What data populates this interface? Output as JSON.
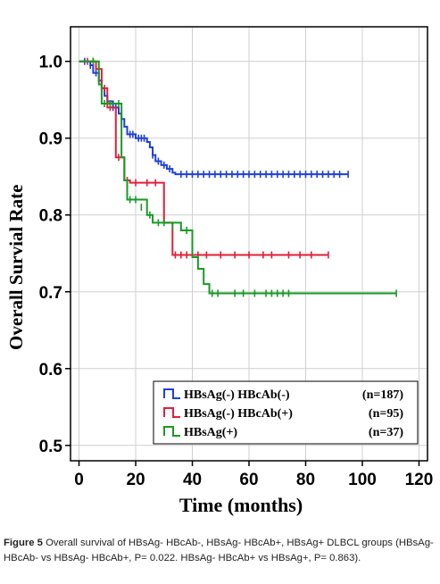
{
  "chart_data": {
    "type": "line",
    "subtype": "kaplan-meier",
    "ylabel": "Overall Survial Rate",
    "xlabel": "Time (months)",
    "xlim": [
      -3,
      123
    ],
    "ylim": [
      0.48,
      1.045
    ],
    "x_ticks": [
      0,
      20,
      40,
      60,
      80,
      100,
      120
    ],
    "y_ticks": [
      0.5,
      0.6,
      0.7,
      0.8,
      0.9,
      1.0
    ],
    "y_tick_labels": [
      "0.5",
      "0.6",
      "0.7",
      "0.8",
      "0.9",
      "1.0"
    ],
    "grid": true,
    "legend_position": "bottom-right",
    "series": [
      {
        "name": "HBsAg(-) HBcAb(-)",
        "count": "(n=187)",
        "color": "#1f3fd9",
        "steps": [
          [
            0,
            1.0
          ],
          [
            4,
            0.995
          ],
          [
            5,
            0.985
          ],
          [
            7,
            0.975
          ],
          [
            8,
            0.965
          ],
          [
            9,
            0.955
          ],
          [
            10,
            0.948
          ],
          [
            12,
            0.94
          ],
          [
            14,
            0.932
          ],
          [
            15,
            0.925
          ],
          [
            16,
            0.915
          ],
          [
            17,
            0.905
          ],
          [
            20,
            0.9
          ],
          [
            24,
            0.895
          ],
          [
            25,
            0.888
          ],
          [
            26,
            0.878
          ],
          [
            27,
            0.87
          ],
          [
            29,
            0.865
          ],
          [
            31,
            0.86
          ],
          [
            33,
            0.855
          ],
          [
            34,
            0.853
          ],
          [
            95,
            0.853
          ]
        ],
        "censored": [
          [
            2,
            1.0
          ],
          [
            4,
            0.995
          ],
          [
            6,
            0.985
          ],
          [
            8,
            0.965
          ],
          [
            10,
            0.948
          ],
          [
            12,
            0.94
          ],
          [
            13,
            0.94
          ],
          [
            15,
            0.925
          ],
          [
            18,
            0.905
          ],
          [
            19,
            0.905
          ],
          [
            21,
            0.9
          ],
          [
            22,
            0.9
          ],
          [
            23,
            0.9
          ],
          [
            26,
            0.878
          ],
          [
            28,
            0.87
          ],
          [
            30,
            0.865
          ],
          [
            32,
            0.86
          ],
          [
            36,
            0.853
          ],
          [
            38,
            0.853
          ],
          [
            40,
            0.853
          ],
          [
            42,
            0.853
          ],
          [
            44,
            0.853
          ],
          [
            46,
            0.853
          ],
          [
            48,
            0.853
          ],
          [
            50,
            0.853
          ],
          [
            52,
            0.853
          ],
          [
            54,
            0.853
          ],
          [
            56,
            0.853
          ],
          [
            58,
            0.853
          ],
          [
            60,
            0.853
          ],
          [
            62,
            0.853
          ],
          [
            64,
            0.853
          ],
          [
            66,
            0.853
          ],
          [
            68,
            0.853
          ],
          [
            70,
            0.853
          ],
          [
            72,
            0.853
          ],
          [
            74,
            0.853
          ],
          [
            76,
            0.853
          ],
          [
            78,
            0.853
          ],
          [
            80,
            0.853
          ],
          [
            82,
            0.853
          ],
          [
            84,
            0.853
          ],
          [
            86,
            0.853
          ],
          [
            88,
            0.853
          ],
          [
            90,
            0.853
          ],
          [
            92,
            0.853
          ],
          [
            95,
            0.853
          ]
        ]
      },
      {
        "name": "HBsAg(-) HBcAb(+)",
        "count": "(n=95)",
        "color": "#e0203a",
        "steps": [
          [
            0,
            1.0
          ],
          [
            6,
            0.99
          ],
          [
            8,
            0.965
          ],
          [
            10,
            0.94
          ],
          [
            13,
            0.875
          ],
          [
            16,
            0.845
          ],
          [
            18,
            0.842
          ],
          [
            30,
            0.79
          ],
          [
            33,
            0.748
          ],
          [
            88,
            0.748
          ]
        ],
        "censored": [
          [
            3,
            1.0
          ],
          [
            5,
            1.0
          ],
          [
            9,
            0.965
          ],
          [
            11,
            0.94
          ],
          [
            14,
            0.875
          ],
          [
            17,
            0.845
          ],
          [
            20,
            0.842
          ],
          [
            24,
            0.842
          ],
          [
            27,
            0.842
          ],
          [
            34,
            0.748
          ],
          [
            36,
            0.748
          ],
          [
            38,
            0.748
          ],
          [
            42,
            0.748
          ],
          [
            45,
            0.748
          ],
          [
            50,
            0.748
          ],
          [
            55,
            0.748
          ],
          [
            60,
            0.748
          ],
          [
            65,
            0.748
          ],
          [
            68,
            0.748
          ],
          [
            74,
            0.748
          ],
          [
            78,
            0.748
          ],
          [
            82,
            0.748
          ],
          [
            88,
            0.748
          ]
        ]
      },
      {
        "name": "HBsAg(+)",
        "count": "(n=37)",
        "color": "#179a25",
        "steps": [
          [
            0,
            1.0
          ],
          [
            7,
            0.97
          ],
          [
            8,
            0.945
          ],
          [
            12,
            0.945
          ],
          [
            15,
            0.875
          ],
          [
            16,
            0.845
          ],
          [
            17,
            0.82
          ],
          [
            24,
            0.8
          ],
          [
            26,
            0.79
          ],
          [
            36,
            0.78
          ],
          [
            40,
            0.745
          ],
          [
            42,
            0.73
          ],
          [
            44,
            0.71
          ],
          [
            46,
            0.698
          ],
          [
            112,
            0.698
          ]
        ],
        "censored": [
          [
            5,
            1.0
          ],
          [
            9,
            0.945
          ],
          [
            11,
            0.945
          ],
          [
            14,
            0.945
          ],
          [
            18,
            0.82
          ],
          [
            20,
            0.82
          ],
          [
            22,
            0.81
          ],
          [
            25,
            0.8
          ],
          [
            28,
            0.79
          ],
          [
            30,
            0.79
          ],
          [
            33,
            0.785
          ],
          [
            38,
            0.78
          ],
          [
            47,
            0.698
          ],
          [
            49,
            0.698
          ],
          [
            55,
            0.698
          ],
          [
            58,
            0.698
          ],
          [
            62,
            0.698
          ],
          [
            66,
            0.698
          ],
          [
            68,
            0.698
          ],
          [
            70,
            0.698
          ],
          [
            72,
            0.698
          ],
          [
            74,
            0.698
          ],
          [
            112,
            0.698
          ]
        ]
      }
    ]
  },
  "caption": {
    "label": "Figure 5",
    "text": " Overall survival of HBsAg- HBcAb-, HBsAg- HBcAb+, HBsAg+ DLBCL groups (HBsAg- HBcAb- vs HBsAg- HBcAb+, P= 0.022. HBsAg- HBcAb+ vs HBsAg+, P= 0.863)."
  }
}
